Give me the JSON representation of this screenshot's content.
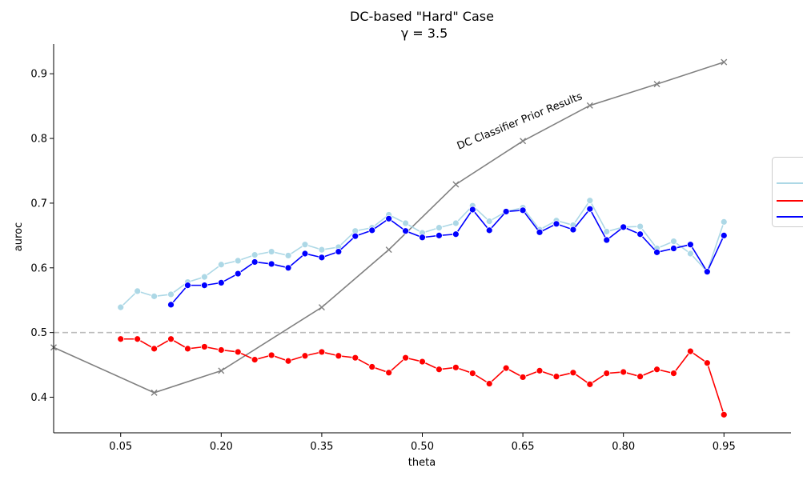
{
  "chart_data": {
    "type": "line",
    "title": "DC-based \"Hard\" Case",
    "subtitle": "γ = 3.5",
    "xlabel": "theta",
    "ylabel": "auroc",
    "xlim": [
      -0.05,
      1.05
    ],
    "ylim": [
      0.345,
      0.946
    ],
    "xticks": [
      0.05,
      0.2,
      0.35,
      0.5,
      0.65,
      0.8,
      0.95
    ],
    "xtick_labels": [
      "0.05",
      "0.20",
      "0.35",
      "0.50",
      "0.65",
      "0.80",
      "0.95"
    ],
    "yticks": [
      0.4,
      0.5,
      0.6,
      0.7,
      0.8,
      0.9
    ],
    "ytick_labels": [
      "0.4",
      "0.5",
      "0.6",
      "0.7",
      "0.8",
      "0.9"
    ],
    "grid": false,
    "legend_position": "right (cut off)",
    "x": [
      0.05,
      0.075,
      0.1,
      0.125,
      0.15,
      0.175,
      0.2,
      0.225,
      0.25,
      0.275,
      0.3,
      0.325,
      0.35,
      0.375,
      0.4,
      0.425,
      0.45,
      0.475,
      0.5,
      0.525,
      0.55,
      0.575,
      0.6,
      0.625,
      0.65,
      0.675,
      0.7,
      0.725,
      0.75,
      0.775,
      0.8,
      0.825,
      0.85,
      0.875,
      0.9,
      0.925,
      0.95
    ],
    "series": [
      {
        "color": "#add8e6",
        "values": [
          0.539,
          0.564,
          0.556,
          0.559,
          0.578,
          0.586,
          0.605,
          0.611,
          0.62,
          0.625,
          0.619,
          0.636,
          0.628,
          0.632,
          0.657,
          0.662,
          0.682,
          0.669,
          0.654,
          0.662,
          0.669,
          0.696,
          0.672,
          0.687,
          0.693,
          0.659,
          0.673,
          0.666,
          0.704,
          0.656,
          0.663,
          0.664,
          0.63,
          0.641,
          0.622,
          0.594,
          0.671
        ]
      },
      {
        "color": "#ff0000",
        "values": [
          0.49,
          0.49,
          0.475,
          0.49,
          0.475,
          0.478,
          0.473,
          0.47,
          0.458,
          0.465,
          0.456,
          0.464,
          0.47,
          0.464,
          0.461,
          0.447,
          0.438,
          0.461,
          0.455,
          0.443,
          0.446,
          0.437,
          0.421,
          0.445,
          0.431,
          0.441,
          0.432,
          0.438,
          0.42,
          0.437,
          0.439,
          0.432,
          0.443,
          0.437,
          0.471,
          0.453,
          0.373
        ]
      },
      {
        "color": "#0000ff",
        "values": [
          null,
          null,
          null,
          0.543,
          0.573,
          0.573,
          0.577,
          0.591,
          0.609,
          0.606,
          0.6,
          0.622,
          0.616,
          0.625,
          0.649,
          0.658,
          0.676,
          0.657,
          0.647,
          0.65,
          0.652,
          0.69,
          0.658,
          0.687,
          0.689,
          0.655,
          0.668,
          0.659,
          0.691,
          0.643,
          0.663,
          0.652,
          0.624,
          0.63,
          0.636,
          0.594,
          0.65
        ]
      }
    ],
    "prior_results": {
      "color": "#808080",
      "x": [
        -0.05,
        0.1,
        0.2,
        0.35,
        0.45,
        0.55,
        0.65,
        0.75,
        0.85,
        0.95
      ],
      "values": [
        0.477,
        0.407,
        0.441,
        0.539,
        0.628,
        0.729,
        0.796,
        0.851,
        0.884,
        0.918
      ]
    },
    "baseline": {
      "value": 0.5,
      "color": "#bbbbbb",
      "x_range": [
        -0.05,
        1.05
      ]
    },
    "annotation": "DC Classifier Prior Results"
  }
}
